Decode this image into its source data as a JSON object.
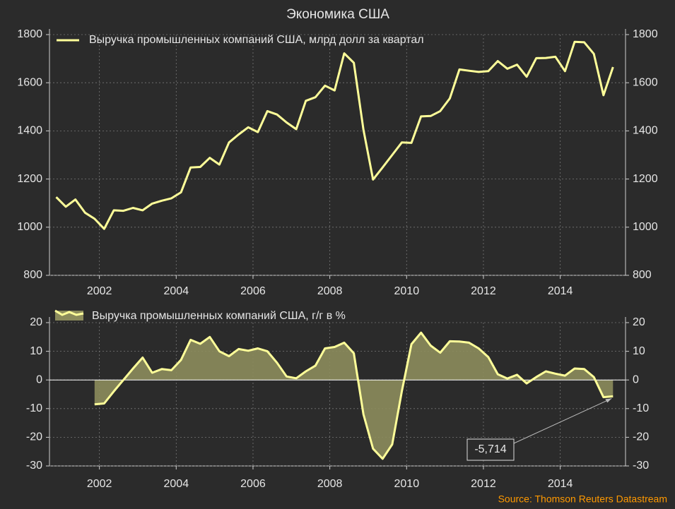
{
  "source": "Source: Thomson Reuters Datastream",
  "chart_data": [
    {
      "type": "line",
      "title": "Экономика США",
      "x": [
        2000.875,
        2001.125,
        2001.375,
        2001.625,
        2001.875,
        2002.125,
        2002.375,
        2002.625,
        2002.875,
        2003.125,
        2003.375,
        2003.625,
        2003.875,
        2004.125,
        2004.375,
        2004.625,
        2004.875,
        2005.125,
        2005.375,
        2005.625,
        2005.875,
        2006.125,
        2006.375,
        2006.625,
        2006.875,
        2007.125,
        2007.375,
        2007.625,
        2007.875,
        2008.125,
        2008.375,
        2008.625,
        2008.875,
        2009.125,
        2009.375,
        2009.625,
        2009.875,
        2010.125,
        2010.375,
        2010.625,
        2010.875,
        2011.125,
        2011.375,
        2011.625,
        2011.875,
        2012.125,
        2012.375,
        2012.625,
        2012.875,
        2013.125,
        2013.375,
        2013.625,
        2013.875,
        2014.125,
        2014.375,
        2014.625,
        2014.875,
        2015.125,
        2015.375
      ],
      "series": [
        {
          "name": "Выручка промышленных компаний США, млрд долл за квартал",
          "color": "#ffff99",
          "values": [
            1125,
            1085,
            1115,
            1060,
            1035,
            993,
            1070,
            1068,
            1080,
            1070,
            1098,
            1110,
            1120,
            1145,
            1248,
            1250,
            1288,
            1260,
            1352,
            1385,
            1415,
            1395,
            1482,
            1468,
            1435,
            1407,
            1525,
            1540,
            1588,
            1568,
            1722,
            1683,
            1405,
            1198,
            1248,
            1300,
            1352,
            1350,
            1460,
            1462,
            1482,
            1535,
            1655,
            1650,
            1645,
            1648,
            1690,
            1658,
            1675,
            1625,
            1702,
            1703,
            1708,
            1648,
            1770,
            1768,
            1720,
            1548,
            1665
          ]
        }
      ],
      "xlim": [
        2000.7,
        2015.7
      ],
      "xticks": [
        2002,
        2004,
        2006,
        2008,
        2010,
        2012,
        2014
      ],
      "ylim": [
        800,
        1800
      ],
      "yticks": [
        800,
        1000,
        1200,
        1400,
        1600,
        1800
      ],
      "grid": true
    },
    {
      "type": "area",
      "x": [
        2000.875,
        2001.125,
        2001.375,
        2001.625,
        2001.875,
        2002.125,
        2002.375,
        2002.625,
        2002.875,
        2003.125,
        2003.375,
        2003.625,
        2003.875,
        2004.125,
        2004.375,
        2004.625,
        2004.875,
        2005.125,
        2005.375,
        2005.625,
        2005.875,
        2006.125,
        2006.375,
        2006.625,
        2006.875,
        2007.125,
        2007.375,
        2007.625,
        2007.875,
        2008.125,
        2008.375,
        2008.625,
        2008.875,
        2009.125,
        2009.375,
        2009.625,
        2009.875,
        2010.125,
        2010.375,
        2010.625,
        2010.875,
        2011.125,
        2011.375,
        2011.625,
        2011.875,
        2012.125,
        2012.375,
        2012.625,
        2012.875,
        2013.125,
        2013.375,
        2013.625,
        2013.875,
        2014.125,
        2014.375,
        2014.625,
        2014.875,
        2015.125,
        2015.375
      ],
      "series": [
        {
          "name": "Выручка промышленных компаний США, г/г в %",
          "color": "#ffff99",
          "fill": "#8c8c5c",
          "values": [
            null,
            null,
            null,
            null,
            -8.5,
            -8.2,
            -4,
            0,
            4,
            7.8,
            2.5,
            3.8,
            3.4,
            7,
            14,
            12.6,
            15,
            10,
            8.3,
            10.8,
            10.2,
            11,
            10,
            6,
            1.2,
            0.6,
            3,
            5,
            11,
            11.5,
            13,
            9.3,
            -12,
            -24,
            -27.5,
            -22.5,
            -4,
            12.5,
            16.5,
            12,
            9.5,
            13.5,
            13.4,
            13,
            11,
            8,
            2,
            0.5,
            1.8,
            -1.2,
            1,
            3,
            2.2,
            1.5,
            4,
            3.8,
            1,
            -6,
            -5.714
          ]
        }
      ],
      "annotation": "-5,714",
      "xlim": [
        2000.7,
        2015.7
      ],
      "xticks": [
        2002,
        2004,
        2006,
        2008,
        2010,
        2012,
        2014
      ],
      "ylim": [
        -30,
        20
      ],
      "yticks": [
        -30,
        -20,
        -10,
        0,
        10,
        20
      ],
      "grid": true
    }
  ]
}
